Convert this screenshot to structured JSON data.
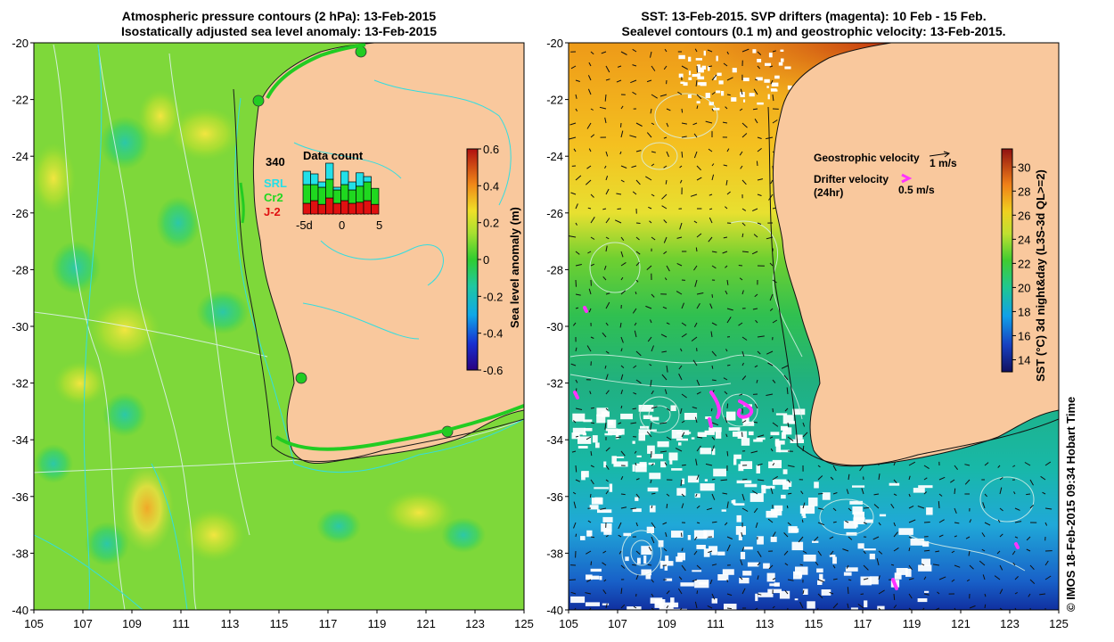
{
  "left_panel": {
    "title_line1": "Atmospheric pressure contours (2 hPa): 13-Feb-2015",
    "title_line2": "Isostatically adjusted sea level anomaly: 13-Feb-2015",
    "y_ticks": [
      "-20",
      "-22",
      "-24",
      "-26",
      "-28",
      "-30",
      "-32",
      "-34",
      "-36",
      "-38",
      "-40"
    ],
    "x_ticks": [
      "105",
      "107",
      "109",
      "111",
      "113",
      "115",
      "117",
      "119",
      "121",
      "123",
      "125"
    ],
    "colorbar": {
      "label": "Sea level anomaly (m)",
      "ticks": [
        "0.6",
        "0.4",
        "0.2",
        "0",
        "-0.2",
        "-0.4",
        "-0.6"
      ],
      "range": [
        -0.6,
        0.6
      ]
    },
    "data_count": {
      "title": "Data count",
      "count": "340",
      "legend": [
        {
          "label": "SRL",
          "color": "#22e0e8"
        },
        {
          "label": "Cr2",
          "color": "#1fd81f"
        },
        {
          "label": "J-2",
          "color": "#e01010"
        }
      ],
      "x_ticks": [
        "-5d",
        "0",
        "5"
      ],
      "bars": [
        {
          "j2": 0.2,
          "cr2": 0.35,
          "srl": 0.25
        },
        {
          "j2": 0.25,
          "cr2": 0.3,
          "srl": 0.2
        },
        {
          "j2": 0.18,
          "cr2": 0.32,
          "srl": 0.1
        },
        {
          "j2": 0.3,
          "cr2": 0.35,
          "srl": 0.3
        },
        {
          "j2": 0.2,
          "cr2": 0.25,
          "srl": 0.05
        },
        {
          "j2": 0.25,
          "cr2": 0.3,
          "srl": 0.25
        },
        {
          "j2": 0.2,
          "cr2": 0.25,
          "srl": 0.15
        },
        {
          "j2": 0.22,
          "cr2": 0.3,
          "srl": 0.25
        },
        {
          "j2": 0.25,
          "cr2": 0.35,
          "srl": 0.1
        },
        {
          "j2": 0.18,
          "cr2": 0.3,
          "srl": 0.0
        }
      ]
    }
  },
  "right_panel": {
    "title_line1": "SST: 13-Feb-2015. SVP drifters (magenta): 10 Feb - 15 Feb.",
    "title_line2": "Sealevel contours (0.1 m) and geostrophic velocity: 13-Feb-2015.",
    "y_ticks": [
      "-20",
      "-22",
      "-24",
      "-26",
      "-28",
      "-30",
      "-32",
      "-34",
      "-36",
      "-38",
      "-40"
    ],
    "x_ticks": [
      "105",
      "107",
      "109",
      "111",
      "113",
      "115",
      "117",
      "119",
      "121",
      "123",
      "125"
    ],
    "colorbar": {
      "label": "SST (°C) 3d night&day (L3S-3d QL>=2)",
      "ticks": [
        "30",
        "28",
        "26",
        "24",
        "22",
        "20",
        "18",
        "16",
        "14"
      ],
      "range": [
        13,
        31.5
      ]
    },
    "legend": {
      "geostrophic_label": "Geostrophic velocity",
      "geostrophic_scale": "1 m/s",
      "drifter_label": "Drifter velocity",
      "drifter_sub": "(24hr)",
      "drifter_scale": "0.5 m/s",
      "drifter_color": "#ff33ff"
    }
  },
  "credit": "© IMOS 18-Feb-2015 09:34 Hobart Time",
  "colors": {
    "land": "#f9c89d",
    "coast": "#000000",
    "pressure_contour": "#e8f4ff",
    "bathymetry_contour": "#33dde0"
  }
}
